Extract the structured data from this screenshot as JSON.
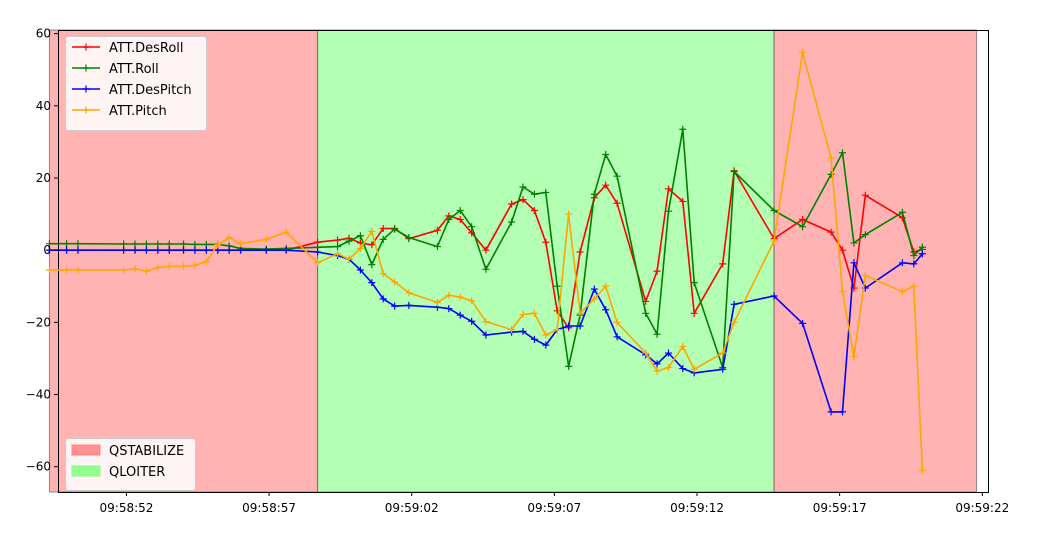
{
  "chart_data": {
    "type": "line",
    "xlim": [
      "09:58:49.6",
      "09:59:22.2"
    ],
    "ylim": [
      -67,
      61
    ],
    "x_ticks": [
      "09:58:52",
      "09:58:57",
      "09:59:02",
      "09:59:07",
      "09:59:12",
      "09:59:17",
      "09:59:22"
    ],
    "y_ticks": [
      -60,
      -40,
      -20,
      0,
      20,
      40,
      60
    ],
    "mode_regions": [
      {
        "name": "QSTABILIZE",
        "start": "09:58:49.3",
        "end": "09:58:58.7",
        "color": "#ff8080"
      },
      {
        "name": "QLOITER",
        "start": "09:58:58.7",
        "end": "09:59:14.7",
        "color": "#80ff80"
      },
      {
        "name": "QSTABILIZE",
        "start": "09:59:14.7",
        "end": "09:59:21.8",
        "color": "#ff8080"
      }
    ],
    "legends": [
      {
        "placement": "upper-left",
        "entries": [
          "ATT.DesRoll",
          "ATT.Roll",
          "ATT.DesPitch",
          "ATT.Pitch"
        ]
      },
      {
        "placement": "lower-left",
        "entries": [
          "QSTABILIZE",
          "QLOITER"
        ]
      }
    ],
    "series": [
      {
        "name": "ATT.DesRoll",
        "color": "#ff0000",
        "points": [
          [
            "09:58:49.3",
            0
          ],
          [
            "09:58:49.9",
            0
          ],
          [
            "09:58:50.3",
            0
          ],
          [
            "09:58:51.9",
            0
          ],
          [
            "09:58:52.3",
            0
          ],
          [
            "09:58:52.7",
            0
          ],
          [
            "09:58:53.1",
            0
          ],
          [
            "09:58:53.5",
            0
          ],
          [
            "09:58:54.0",
            0
          ],
          [
            "09:58:54.4",
            0
          ],
          [
            "09:58:54.8",
            0
          ],
          [
            "09:58:55.2",
            0
          ],
          [
            "09:58:55.6",
            0
          ],
          [
            "09:58:56.0",
            0
          ],
          [
            "09:58:56.9",
            0
          ],
          [
            "09:58:57.6",
            0
          ],
          [
            "09:58:58.7",
            2.2
          ],
          [
            "09:58:59.4",
            2.8
          ],
          [
            "09:58:59.8",
            3.3
          ],
          [
            "09:59:00.2",
            2
          ],
          [
            "09:59:00.6",
            1.5
          ],
          [
            "09:59:01.0",
            6
          ],
          [
            "09:59:01.4",
            6
          ],
          [
            "09:59:01.9",
            3.2
          ],
          [
            "09:59:02.9",
            5.5
          ],
          [
            "09:59:03.3",
            9.5
          ],
          [
            "09:59:03.7",
            8.5
          ],
          [
            "09:59:04.1",
            4.8
          ],
          [
            "09:59:04.6",
            0
          ],
          [
            "09:59:05.5",
            12.8
          ],
          [
            "09:59:05.9",
            14
          ],
          [
            "09:59:06.3",
            11
          ],
          [
            "09:59:06.7",
            2.2
          ],
          [
            "09:59:07.1",
            -16.8
          ],
          [
            "09:59:07.5",
            -21.5
          ],
          [
            "09:59:07.9",
            -0.5
          ],
          [
            "09:59:08.4",
            14.5
          ],
          [
            "09:59:08.8",
            18
          ],
          [
            "09:59:09.2",
            13
          ],
          [
            "09:59:10.2",
            -14.2
          ],
          [
            "09:59:10.6",
            -5.8
          ],
          [
            "09:59:11.0",
            17
          ],
          [
            "09:59:11.5",
            13.5
          ],
          [
            "09:59:11.9",
            -17.5
          ],
          [
            "09:59:12.9",
            -3.8
          ],
          [
            "09:59:13.3",
            22
          ],
          [
            "09:59:14.7",
            3.2
          ],
          [
            "09:59:15.7",
            8.5
          ],
          [
            "09:59:16.7",
            5
          ],
          [
            "09:59:17.1",
            0
          ],
          [
            "09:59:17.5",
            -10.5
          ],
          [
            "09:59:17.9",
            15.2
          ],
          [
            "09:59:19.2",
            9
          ],
          [
            "09:59:19.6",
            -0.5
          ],
          [
            "09:59:19.9",
            0.2
          ]
        ]
      },
      {
        "name": "ATT.Roll",
        "color": "#008000",
        "points": [
          [
            "09:58:49.3",
            1.8
          ],
          [
            "09:58:49.9",
            1.8
          ],
          [
            "09:58:50.3",
            1.8
          ],
          [
            "09:58:51.9",
            1.7
          ],
          [
            "09:58:52.3",
            1.7
          ],
          [
            "09:58:52.7",
            1.7
          ],
          [
            "09:58:53.1",
            1.7
          ],
          [
            "09:58:53.5",
            1.7
          ],
          [
            "09:58:54.0",
            1.7
          ],
          [
            "09:58:54.4",
            1.6
          ],
          [
            "09:58:54.8",
            1.6
          ],
          [
            "09:58:55.2",
            1.6
          ],
          [
            "09:58:55.6",
            1.2
          ],
          [
            "09:58:56.0",
            0.5
          ],
          [
            "09:58:56.9",
            0.3
          ],
          [
            "09:58:57.6",
            0.5
          ],
          [
            "09:58:58.7",
            0.8
          ],
          [
            "09:58:59.4",
            1
          ],
          [
            "09:58:59.8",
            2.5
          ],
          [
            "09:59:00.2",
            4
          ],
          [
            "09:59:00.6",
            -4
          ],
          [
            "09:59:01.0",
            3
          ],
          [
            "09:59:01.4",
            5.8
          ],
          [
            "09:59:01.9",
            3.5
          ],
          [
            "09:59:02.9",
            1
          ],
          [
            "09:59:03.3",
            8.5
          ],
          [
            "09:59:03.7",
            11
          ],
          [
            "09:59:04.1",
            6.5
          ],
          [
            "09:59:04.6",
            -5.3
          ],
          [
            "09:59:05.5",
            7.8
          ],
          [
            "09:59:05.9",
            17.5
          ],
          [
            "09:59:06.3",
            15.5
          ],
          [
            "09:59:06.7",
            16
          ],
          [
            "09:59:07.1",
            -10
          ],
          [
            "09:59:07.5",
            -32.2
          ],
          [
            "09:59:07.9",
            -18
          ],
          [
            "09:59:08.4",
            15.5
          ],
          [
            "09:59:08.8",
            26.5
          ],
          [
            "09:59:09.2",
            20.5
          ],
          [
            "09:59:10.2",
            -17.5
          ],
          [
            "09:59:10.6",
            -23.3
          ],
          [
            "09:59:11.0",
            10.8
          ],
          [
            "09:59:11.5",
            33.5
          ],
          [
            "09:59:11.9",
            -9
          ],
          [
            "09:59:12.9",
            -32.5
          ],
          [
            "09:59:13.3",
            21.8
          ],
          [
            "09:59:14.7",
            11
          ],
          [
            "09:59:15.7",
            6.5
          ],
          [
            "09:59:16.7",
            21
          ],
          [
            "09:59:17.1",
            27
          ],
          [
            "09:59:17.5",
            2
          ],
          [
            "09:59:17.9",
            4.3
          ],
          [
            "09:59:19.2",
            10.5
          ],
          [
            "09:59:19.6",
            -1.5
          ],
          [
            "09:59:19.9",
            0.8
          ]
        ]
      },
      {
        "name": "ATT.DesPitch",
        "color": "#0000ff",
        "points": [
          [
            "09:58:49.3",
            0
          ],
          [
            "09:58:49.9",
            0
          ],
          [
            "09:58:50.3",
            0
          ],
          [
            "09:58:51.9",
            0
          ],
          [
            "09:58:52.3",
            0
          ],
          [
            "09:58:52.7",
            0
          ],
          [
            "09:58:53.1",
            0
          ],
          [
            "09:58:53.5",
            0
          ],
          [
            "09:58:54.0",
            0
          ],
          [
            "09:58:54.4",
            0
          ],
          [
            "09:58:54.8",
            0
          ],
          [
            "09:58:55.2",
            0
          ],
          [
            "09:58:55.6",
            0
          ],
          [
            "09:58:56.0",
            0
          ],
          [
            "09:58:56.9",
            0
          ],
          [
            "09:58:57.6",
            0
          ],
          [
            "09:58:58.7",
            -0.5
          ],
          [
            "09:58:59.4",
            -1.5
          ],
          [
            "09:58:59.8",
            -2.5
          ],
          [
            "09:59:00.2",
            -5.5
          ],
          [
            "09:59:00.6",
            -9
          ],
          [
            "09:59:01.0",
            -13.5
          ],
          [
            "09:59:01.4",
            -15.5
          ],
          [
            "09:59:01.9",
            -15.3
          ],
          [
            "09:59:02.9",
            -15.8
          ],
          [
            "09:59:03.3",
            -16.2
          ],
          [
            "09:59:03.7",
            -18
          ],
          [
            "09:59:04.1",
            -19.7
          ],
          [
            "09:59:04.6",
            -23.5
          ],
          [
            "09:59:05.5",
            -22.7
          ],
          [
            "09:59:05.9",
            -22.5
          ],
          [
            "09:59:06.3",
            -24.7
          ],
          [
            "09:59:06.7",
            -26.3
          ],
          [
            "09:59:07.1",
            -22
          ],
          [
            "09:59:07.5",
            -21
          ],
          [
            "09:59:07.9",
            -21
          ],
          [
            "09:59:08.4",
            -10.8
          ],
          [
            "09:59:08.8",
            -16.5
          ],
          [
            "09:59:09.2",
            -24
          ],
          [
            "09:59:10.2",
            -29
          ],
          [
            "09:59:10.6",
            -31.5
          ],
          [
            "09:59:11.0",
            -28.5
          ],
          [
            "09:59:11.5",
            -32.8
          ],
          [
            "09:59:11.9",
            -34
          ],
          [
            "09:59:12.9",
            -33
          ],
          [
            "09:59:13.3",
            -15
          ],
          [
            "09:59:14.7",
            -12.7
          ],
          [
            "09:59:15.7",
            -20.3
          ],
          [
            "09:59:16.7",
            -44.8
          ],
          [
            "09:59:17.1",
            -44.8
          ],
          [
            "09:59:17.5",
            -3.5
          ],
          [
            "09:59:17.9",
            -10.5
          ],
          [
            "09:59:19.2",
            -3.5
          ],
          [
            "09:59:19.6",
            -3.8
          ],
          [
            "09:59:19.9",
            -1
          ]
        ]
      },
      {
        "name": "ATT.Pitch",
        "color": "#ffa500",
        "points": [
          [
            "09:58:49.3",
            -5.5
          ],
          [
            "09:58:49.9",
            -5.5
          ],
          [
            "09:58:50.3",
            -5.5
          ],
          [
            "09:58:51.9",
            -5.5
          ],
          [
            "09:58:52.3",
            -5.2
          ],
          [
            "09:58:52.7",
            -5.8
          ],
          [
            "09:58:53.1",
            -4.8
          ],
          [
            "09:58:53.5",
            -4.5
          ],
          [
            "09:58:54.0",
            -4.5
          ],
          [
            "09:58:54.4",
            -4.2
          ],
          [
            "09:58:54.8",
            -3.2
          ],
          [
            "09:58:55.2",
            1.5
          ],
          [
            "09:58:55.6",
            3.5
          ],
          [
            "09:58:56.0",
            1.8
          ],
          [
            "09:58:56.9",
            3
          ],
          [
            "09:58:57.6",
            5
          ],
          [
            "09:58:58.7",
            -3.5
          ],
          [
            "09:58:59.4",
            -1
          ],
          [
            "09:58:59.8",
            -2.5
          ],
          [
            "09:59:00.2",
            0.5
          ],
          [
            "09:59:00.6",
            5.2
          ],
          [
            "09:59:01.0",
            -6.5
          ],
          [
            "09:59:01.4",
            -8.8
          ],
          [
            "09:59:01.9",
            -11.8
          ],
          [
            "09:59:02.9",
            -14.5
          ],
          [
            "09:59:03.3",
            -12.5
          ],
          [
            "09:59:03.7",
            -13
          ],
          [
            "09:59:04.1",
            -14
          ],
          [
            "09:59:04.6",
            -19.8
          ],
          [
            "09:59:05.5",
            -22
          ],
          [
            "09:59:05.9",
            -17.8
          ],
          [
            "09:59:06.3",
            -17.5
          ],
          [
            "09:59:06.7",
            -23.5
          ],
          [
            "09:59:07.1",
            -22
          ],
          [
            "09:59:07.5",
            10
          ],
          [
            "09:59:07.9",
            -17.5
          ],
          [
            "09:59:08.4",
            -13.5
          ],
          [
            "09:59:08.8",
            -10
          ],
          [
            "09:59:09.2",
            -20
          ],
          [
            "09:59:10.2",
            -28.5
          ],
          [
            "09:59:10.6",
            -33.5
          ],
          [
            "09:59:11.0",
            -32.5
          ],
          [
            "09:59:11.5",
            -26.7
          ],
          [
            "09:59:11.9",
            -33
          ],
          [
            "09:59:12.9",
            -28.5
          ],
          [
            "09:59:13.3",
            -20
          ],
          [
            "09:59:14.7",
            2.5
          ],
          [
            "09:59:15.7",
            54.8
          ],
          [
            "09:59:16.7",
            25.5
          ],
          [
            "09:59:17.1",
            -11.5
          ],
          [
            "09:59:17.5",
            -29.5
          ],
          [
            "09:59:17.9",
            -7
          ],
          [
            "09:59:19.2",
            -11.5
          ],
          [
            "09:59:19.6",
            -10
          ],
          [
            "09:59:19.9",
            -61
          ]
        ]
      }
    ]
  }
}
